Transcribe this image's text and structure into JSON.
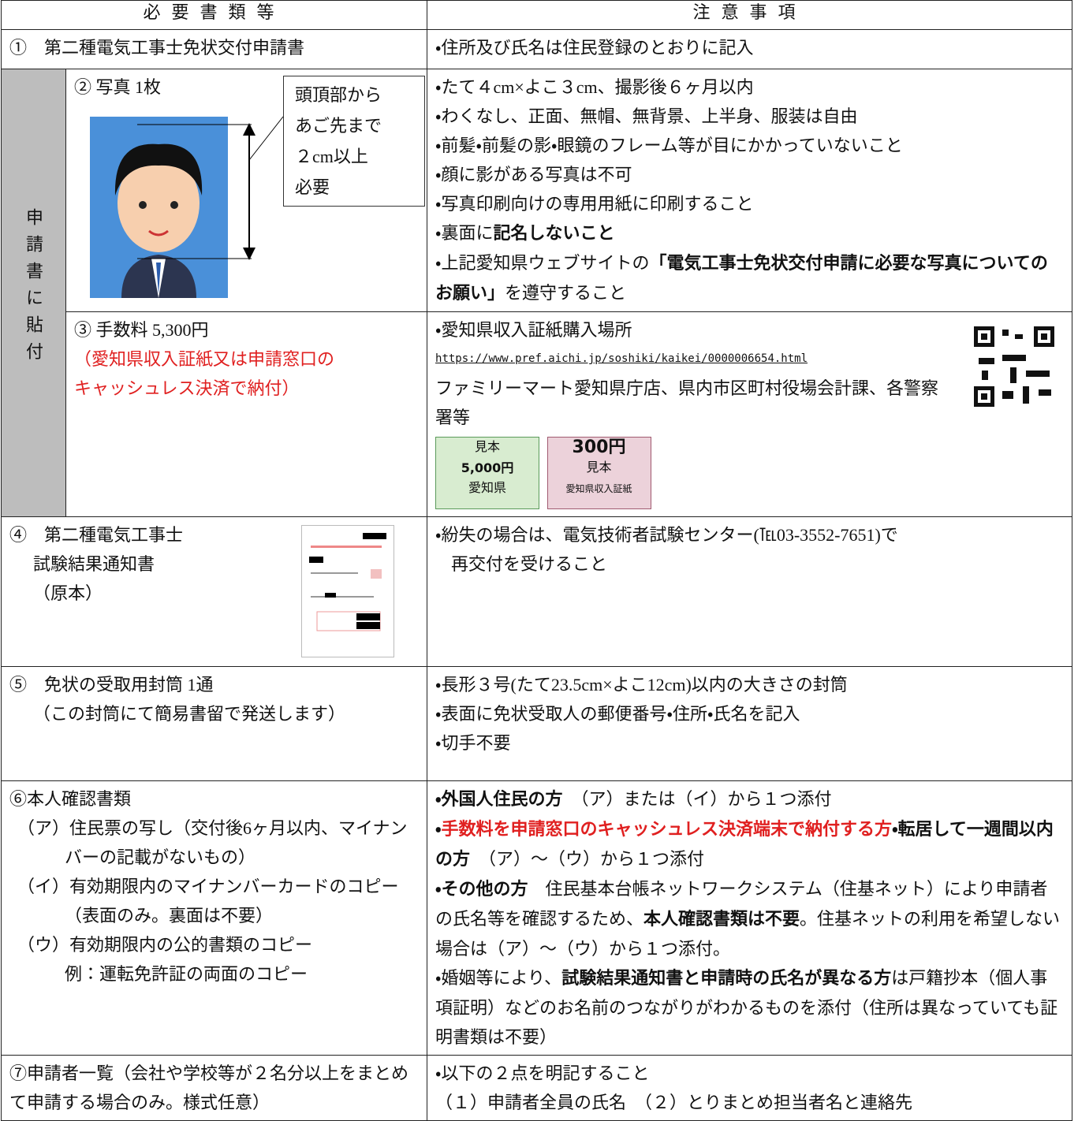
{
  "header": {
    "items": "必要書類等",
    "notes": "注意事項"
  },
  "group_label": "申請書に貼付",
  "rows": [
    {
      "item": [
        "①　第二種電気工事士免状交付申請書"
      ],
      "notes": [
        "・住所及び氏名は住民登録のとおりに記入"
      ]
    },
    {
      "item": [
        "②  写真  1枚"
      ],
      "callout": [
        "頭頂部から",
        "あご先まで",
        "２cm以上",
        "必要"
      ],
      "notes": [
        "・たて４cm×よこ３cm、撮影後６ヶ月以内",
        "・わくなし、正面、無帽、無背景、上半身、服装は自由",
        "・前髪・前髪の影・眼鏡のフレーム等が目にかかっていないこと",
        "・顔に影がある写真は不可",
        "・写真印刷向けの専用用紙に印刷すること",
        [
          "・裏面に",
          "記名しないこと"
        ],
        [
          "・上記愛知県ウェブサイトの",
          "「電気工事士免状交付申請に必要な写真についてのお願い」",
          "を遵守すること"
        ]
      ]
    },
    {
      "item": [
        "③ 手数料 5,300円",
        "（愛知県収入証紙又は申請窓口の",
        "キャッシュレス決済で納付）"
      ],
      "notes": [
        "・愛知県収入証紙購入場所",
        "https://www.pref.aichi.jp/soshiki/kaikei/0000006654.html",
        "ファミリーマート愛知県庁店、県内市区町村役場会計課、各警察署等"
      ],
      "stamps": [
        {
          "label": "見本",
          "amount": "5,000円",
          "issuer": "愛知県"
        },
        {
          "label": "見本",
          "amount": "300円",
          "issuer": "愛知県収入証紙"
        }
      ]
    },
    {
      "item": [
        "④　第二種電気工事士",
        "試験結果通知書",
        "（原本）"
      ],
      "notes": [
        "・紛失の場合は、電気技術者試験センター(℡03-3552-7651)で",
        "再交付を受けること"
      ]
    },
    {
      "item": [
        "⑤　免状の受取用封筒 1通",
        "（この封筒にて簡易書留で発送します）"
      ],
      "notes": [
        "・長形３号(たて23.5cm×よこ12cm)以内の大きさの封筒",
        "・表面に免状受取人の郵便番号・住所・氏名を記入",
        "・切手不要"
      ]
    },
    {
      "item": [
        "⑥本人確認書類",
        "（ア）住民票の写し（交付後6ヶ月以内、マイナンバーの記載がないもの）",
        "（イ）有効期限内のマイナンバーカードのコピー（表面のみ。裏面は不要）",
        "（ウ）有効期限内の公的書類のコピー",
        "例：運転免許証の両面のコピー"
      ],
      "notes": [
        [
          "・外国人住民の方",
          "　（ア）または（イ）から１つ添付"
        ],
        [
          "・",
          "手数料を申請窓口のキャッシュレス決済端末で納付する方",
          "・転居して一週間以内の方",
          "　（ア）～（ウ）から１つ添付"
        ],
        [
          "・その他の方",
          "　住民基本台帳ネットワークシステム（住基ネット）により申請者の氏名等を確認するため、",
          "本人確認書類は不要",
          "。住基ネットの利用を希望しない場合は（ア）～（ウ）から１つ添付。"
        ],
        [
          "・婚姻等により、",
          "試験結果通知書と申請時の氏名が異なる方",
          "は戸籍抄本（個人事項証明）などのお名前のつながりがわかるものを添付（住所は異なっていても証明書類は不要）"
        ]
      ]
    },
    {
      "item": [
        "⑦申請者一覧（会社や学校等が２名分以上をまとめて申請する場合のみ。様式任意）"
      ],
      "notes": [
        "・以下の２点を明記すること",
        "（１）申請者全員の氏名　（２）とりまとめ担当者名と連絡先"
      ]
    }
  ]
}
